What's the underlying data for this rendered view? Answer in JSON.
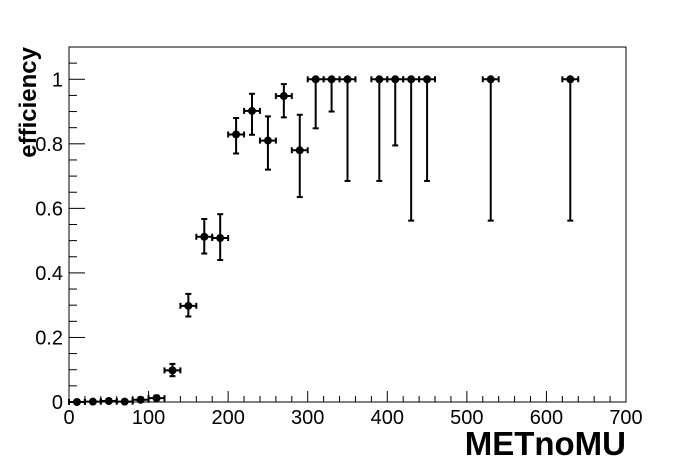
{
  "chart_data": {
    "type": "scatter",
    "xlabel": "METnoMU",
    "ylabel": "efficiency",
    "xlim": [
      0,
      700
    ],
    "ylim": [
      0,
      1.1
    ],
    "x_ticks": [
      0,
      100,
      200,
      300,
      400,
      500,
      600,
      700
    ],
    "x_tick_labels": [
      "0",
      "100",
      "200",
      "300",
      "400",
      "500",
      "600",
      "700"
    ],
    "y_ticks": [
      0,
      0.2,
      0.4,
      0.6,
      0.8,
      1
    ],
    "y_tick_labels": [
      "0",
      "0.2",
      "0.4",
      "0.6",
      "0.8",
      "1"
    ],
    "grid": false,
    "series": [
      {
        "points": [
          {
            "x": 10,
            "y": 0.0,
            "xerr": 10,
            "ylo": 0.0,
            "yhi": 0.005
          },
          {
            "x": 30,
            "y": 0.001,
            "xerr": 10,
            "ylo": 0.0,
            "yhi": 0.006
          },
          {
            "x": 50,
            "y": 0.003,
            "xerr": 10,
            "ylo": 0.0,
            "yhi": 0.009
          },
          {
            "x": 70,
            "y": 0.001,
            "xerr": 10,
            "ylo": 0.0,
            "yhi": 0.006
          },
          {
            "x": 90,
            "y": 0.007,
            "xerr": 10,
            "ylo": 0.002,
            "yhi": 0.014
          },
          {
            "x": 110,
            "y": 0.012,
            "xerr": 10,
            "ylo": 0.006,
            "yhi": 0.02
          },
          {
            "x": 130,
            "y": 0.098,
            "xerr": 10,
            "ylo": 0.08,
            "yhi": 0.118
          },
          {
            "x": 150,
            "y": 0.298,
            "xerr": 10,
            "ylo": 0.265,
            "yhi": 0.335
          },
          {
            "x": 170,
            "y": 0.512,
            "xerr": 10,
            "ylo": 0.46,
            "yhi": 0.567
          },
          {
            "x": 190,
            "y": 0.508,
            "xerr": 10,
            "ylo": 0.44,
            "yhi": 0.582
          },
          {
            "x": 210,
            "y": 0.829,
            "xerr": 10,
            "ylo": 0.77,
            "yhi": 0.88
          },
          {
            "x": 230,
            "y": 0.902,
            "xerr": 10,
            "ylo": 0.828,
            "yhi": 0.955
          },
          {
            "x": 250,
            "y": 0.81,
            "xerr": 10,
            "ylo": 0.72,
            "yhi": 0.885
          },
          {
            "x": 270,
            "y": 0.948,
            "xerr": 10,
            "ylo": 0.882,
            "yhi": 0.985
          },
          {
            "x": 290,
            "y": 0.78,
            "xerr": 10,
            "ylo": 0.635,
            "yhi": 0.89
          },
          {
            "x": 310,
            "y": 1.0,
            "xerr": 10,
            "ylo": 0.848,
            "yhi": 1.0
          },
          {
            "x": 330,
            "y": 1.0,
            "xerr": 10,
            "ylo": 0.9,
            "yhi": 1.0
          },
          {
            "x": 350,
            "y": 1.0,
            "xerr": 10,
            "ylo": 0.685,
            "yhi": 1.0
          },
          {
            "x": 390,
            "y": 1.0,
            "xerr": 10,
            "ylo": 0.685,
            "yhi": 1.0
          },
          {
            "x": 410,
            "y": 1.0,
            "xerr": 10,
            "ylo": 0.795,
            "yhi": 1.0
          },
          {
            "x": 430,
            "y": 1.0,
            "xerr": 10,
            "ylo": 0.562,
            "yhi": 1.0
          },
          {
            "x": 450,
            "y": 1.0,
            "xerr": 10,
            "ylo": 0.685,
            "yhi": 1.0
          },
          {
            "x": 530,
            "y": 1.0,
            "xerr": 10,
            "ylo": 0.562,
            "yhi": 1.0
          },
          {
            "x": 630,
            "y": 1.0,
            "xerr": 10,
            "ylo": 0.562,
            "yhi": 1.0
          }
        ]
      }
    ]
  }
}
